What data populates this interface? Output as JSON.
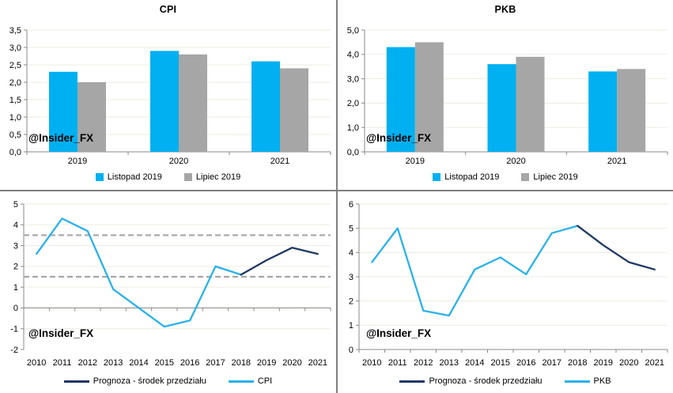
{
  "watermark": "@Insider_FX",
  "colors": {
    "series_cyan": "#00B0F0",
    "series_gray": "#A6A6A6",
    "series_navy": "#1F3864",
    "line_cyan": "#29B2EA",
    "gridline": "#EDECE1",
    "axis": "#898989",
    "divider": "#808080",
    "dashed": "#A6A6A6",
    "text": "#000000"
  },
  "chart_data": [
    {
      "id": "cpi-forecast-bars",
      "type": "bar",
      "title": "CPI",
      "categories": [
        "2019",
        "2020",
        "2021"
      ],
      "series": [
        {
          "name": "Listopad 2019",
          "color": "series_cyan",
          "values": [
            2.3,
            2.9,
            2.6
          ]
        },
        {
          "name": "Lipiec 2019",
          "color": "series_gray",
          "values": [
            2.0,
            2.8,
            2.4
          ]
        }
      ],
      "ylim": [
        0,
        3.5
      ],
      "ytick_step": 0.5,
      "decimal_ticks": true,
      "grid": true,
      "legend_position": "bottom"
    },
    {
      "id": "pkb-forecast-bars",
      "type": "bar",
      "title": "PKB",
      "categories": [
        "2019",
        "2020",
        "2021"
      ],
      "series": [
        {
          "name": "Listopad 2019",
          "color": "series_cyan",
          "values": [
            4.3,
            3.6,
            3.3
          ]
        },
        {
          "name": "Lipiec 2019",
          "color": "series_gray",
          "values": [
            4.5,
            3.9,
            3.4
          ]
        }
      ],
      "ylim": [
        0,
        5.0
      ],
      "ytick_step": 1.0,
      "decimal_ticks": true,
      "grid": true,
      "legend_position": "bottom"
    },
    {
      "id": "cpi-history-forecast-line",
      "type": "line",
      "title": "",
      "x": [
        "2010",
        "2011",
        "2012",
        "2013",
        "2014",
        "2015",
        "2016",
        "2017",
        "2018",
        "2019",
        "2020",
        "2021"
      ],
      "series": [
        {
          "name": "Prognoza - środek przedziału",
          "color": "series_navy",
          "values": [
            null,
            null,
            null,
            null,
            null,
            null,
            null,
            null,
            1.6,
            2.3,
            2.9,
            2.6
          ]
        },
        {
          "name": "CPI",
          "color": "line_cyan",
          "values": [
            2.6,
            4.3,
            3.7,
            0.9,
            0.0,
            -0.9,
            -0.6,
            2.0,
            1.6,
            null,
            null,
            null
          ]
        }
      ],
      "ylim": [
        -2,
        5
      ],
      "ytick_step": 1,
      "decimal_ticks": false,
      "reference_lines": [
        1.5,
        3.5
      ],
      "grid": true,
      "legend_position": "bottom"
    },
    {
      "id": "pkb-history-forecast-line",
      "type": "line",
      "title": "",
      "x": [
        "2010",
        "2011",
        "2012",
        "2013",
        "2014",
        "2015",
        "2016",
        "2017",
        "2018",
        "2019",
        "2020",
        "2021"
      ],
      "series": [
        {
          "name": "Prognoza - środek przedziału",
          "color": "series_navy",
          "values": [
            null,
            null,
            null,
            null,
            null,
            null,
            null,
            null,
            5.1,
            4.3,
            3.6,
            3.3
          ]
        },
        {
          "name": "PKB",
          "color": "line_cyan",
          "values": [
            3.6,
            5.0,
            1.6,
            1.4,
            3.3,
            3.8,
            3.1,
            4.8,
            5.1,
            null,
            null,
            null
          ]
        }
      ],
      "ylim": [
        0,
        6
      ],
      "ytick_step": 1,
      "decimal_ticks": false,
      "reference_lines": [],
      "grid": true,
      "legend_position": "bottom"
    }
  ]
}
